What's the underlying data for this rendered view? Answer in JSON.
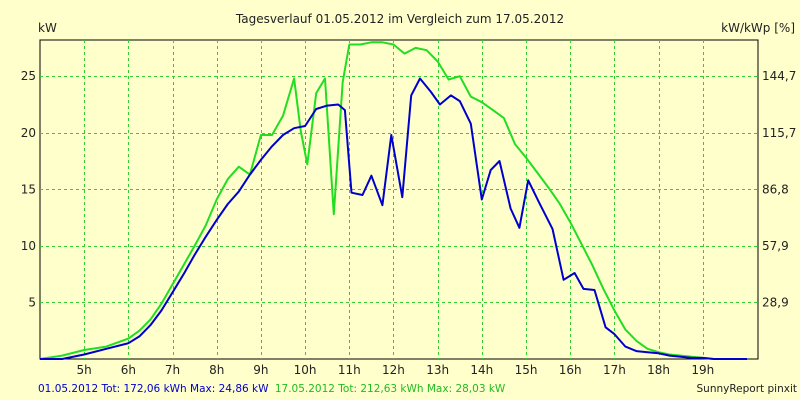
{
  "colors": {
    "background": "#ffffcc",
    "grid": "#33cc33",
    "series_2012_05_01": "#0000cc",
    "series_2012_05_17": "#22dd22"
  },
  "footer": {
    "day1": "01.05.2012 Tot: 172,06 kWh Max: 24,86 kW",
    "day2": "17.05.2012 Tot: 212,63 kWh Max: 28,03 kW",
    "brand": "SunnyReport pinxit"
  },
  "chart_data": {
    "type": "line",
    "title": "Tagesverlauf 01.05.2012 im Vergleich zum 17.05.2012",
    "ylabel": "kW",
    "ylabel_right": "kW/kWp [%]",
    "xlim": [
      4.0,
      20.25
    ],
    "ylim": [
      0,
      28.2
    ],
    "x_ticks": [
      5,
      6,
      7,
      8,
      9,
      10,
      11,
      12,
      13,
      14,
      15,
      16,
      17,
      18,
      19
    ],
    "x_tick_labels": [
      "5h",
      "6h",
      "7h",
      "8h",
      "9h",
      "10h",
      "11h",
      "12h",
      "13h",
      "14h",
      "15h",
      "16h",
      "17h",
      "18h",
      "19h"
    ],
    "y_ticks": [
      5,
      10,
      15,
      20,
      25
    ],
    "y_tick_labels": [
      "5",
      "10",
      "15",
      "20",
      "25"
    ],
    "y_right_ticks": [
      5,
      10,
      15,
      20,
      25
    ],
    "y_right_tick_labels": [
      "28,9",
      "57,9",
      "86,8",
      "115,7",
      "144,7"
    ],
    "grid": true,
    "series": [
      {
        "name": "01.05.2012",
        "x": [
          4.0,
          4.5,
          5.0,
          5.5,
          6.0,
          6.25,
          6.5,
          6.75,
          7.0,
          7.25,
          7.5,
          7.75,
          8.0,
          8.25,
          8.5,
          8.75,
          9.0,
          9.25,
          9.5,
          9.75,
          10.0,
          10.25,
          10.5,
          10.75,
          10.9,
          11.05,
          11.3,
          11.5,
          11.75,
          11.95,
          12.2,
          12.4,
          12.6,
          12.85,
          13.05,
          13.3,
          13.5,
          13.75,
          14.0,
          14.2,
          14.4,
          14.65,
          14.85,
          15.05,
          15.3,
          15.6,
          15.85,
          16.1,
          16.3,
          16.55,
          16.8,
          17.0,
          17.25,
          17.5,
          17.75,
          18.0,
          18.25,
          18.5,
          18.75,
          19.0,
          19.25,
          19.5,
          19.75,
          20.0
        ],
        "y": [
          0,
          0,
          0.4,
          0.9,
          1.4,
          2.0,
          3.0,
          4.3,
          5.9,
          7.5,
          9.2,
          10.8,
          12.3,
          13.7,
          14.8,
          16.3,
          17.6,
          18.8,
          19.8,
          20.4,
          20.6,
          22.1,
          22.4,
          22.5,
          22.0,
          14.7,
          14.5,
          16.2,
          13.6,
          19.8,
          14.3,
          23.3,
          24.8,
          23.6,
          22.5,
          23.3,
          22.8,
          20.8,
          14.1,
          16.7,
          17.5,
          13.3,
          11.6,
          15.8,
          13.8,
          11.5,
          7.0,
          7.6,
          6.2,
          6.1,
          2.8,
          2.2,
          1.1,
          0.7,
          0.6,
          0.5,
          0.3,
          0.2,
          0.1,
          0.1,
          0,
          0,
          0,
          0
        ]
      },
      {
        "name": "17.05.2012",
        "x": [
          4.0,
          4.5,
          5.0,
          5.5,
          6.0,
          6.25,
          6.5,
          6.75,
          7.0,
          7.25,
          7.5,
          7.75,
          8.0,
          8.25,
          8.5,
          8.75,
          9.0,
          9.25,
          9.5,
          9.75,
          9.9,
          10.05,
          10.25,
          10.45,
          10.65,
          10.85,
          11.0,
          11.25,
          11.5,
          11.75,
          12.0,
          12.25,
          12.5,
          12.75,
          13.0,
          13.25,
          13.5,
          13.75,
          14.0,
          14.25,
          14.5,
          14.75,
          15.0,
          15.25,
          15.5,
          15.75,
          16.0,
          16.25,
          16.5,
          16.75,
          17.0,
          17.25,
          17.5,
          17.75,
          18.0,
          18.25,
          18.5,
          18.75,
          19.0,
          19.25,
          19.5,
          19.75,
          20.0
        ],
        "y": [
          0,
          0.3,
          0.8,
          1.1,
          1.8,
          2.5,
          3.5,
          4.9,
          6.6,
          8.3,
          10.0,
          11.8,
          14.1,
          15.9,
          17.0,
          16.3,
          19.8,
          19.8,
          21.5,
          24.8,
          20.2,
          17.2,
          23.5,
          24.8,
          12.8,
          24.5,
          27.8,
          27.8,
          28.0,
          28.0,
          27.8,
          27.0,
          27.5,
          27.3,
          26.3,
          24.7,
          25.0,
          23.2,
          22.7,
          22.0,
          21.3,
          19.0,
          17.8,
          16.5,
          15.2,
          13.8,
          12.1,
          10.2,
          8.3,
          6.2,
          4.3,
          2.6,
          1.6,
          0.9,
          0.6,
          0.4,
          0.3,
          0.2,
          0.1,
          0,
          0,
          0,
          0
        ]
      }
    ]
  }
}
